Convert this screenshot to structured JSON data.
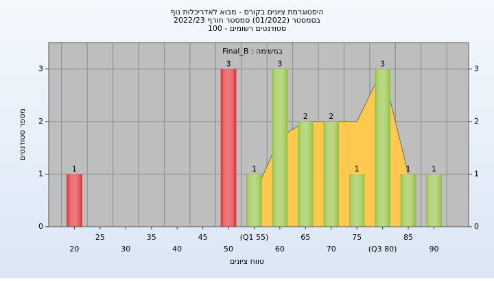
{
  "chart_data": {
    "type": "bar",
    "title": "היסטוגרמת ציונים בקורס - מבוא לאדריכלות נוף",
    "subtitle": "בסמסטר  (01/2022)  סמסטר חורף 2022/23",
    "subtitle2": "סטודנטים רשומים - 100",
    "annotation": "במשימה : Final_B",
    "x_label": "טווח ציונים",
    "y_label": "מספר סטודנטים",
    "categories": [
      "20",
      "25",
      "30",
      "35",
      "40",
      "45",
      "50",
      "(Q1 55)",
      "60",
      "65",
      "70",
      "75",
      "(Q3 80)",
      "85",
      "90"
    ],
    "values": [
      1,
      0,
      0,
      0,
      0,
      0,
      3,
      1,
      3,
      2,
      2,
      1,
      3,
      1,
      1
    ],
    "colors": [
      "#e0262b",
      "#e0262b",
      "#e0262b",
      "#e0262b",
      "#e0262b",
      "#e0262b",
      "#e0262b",
      "#8fbf3a",
      "#8fbf3a",
      "#8fbf3a",
      "#8fbf3a",
      "#8fbf3a",
      "#8fbf3a",
      "#8fbf3a",
      "#8fbf3a"
    ],
    "area": {
      "type": "area",
      "color": "#ffc84f",
      "values": [
        null,
        null,
        null,
        null,
        null,
        null,
        null,
        0.6,
        1.7,
        2,
        2,
        2,
        3,
        1,
        null
      ]
    },
    "ylim": [
      0,
      3.5
    ],
    "yticks": [
      0,
      1,
      2,
      3
    ],
    "grid": true
  }
}
